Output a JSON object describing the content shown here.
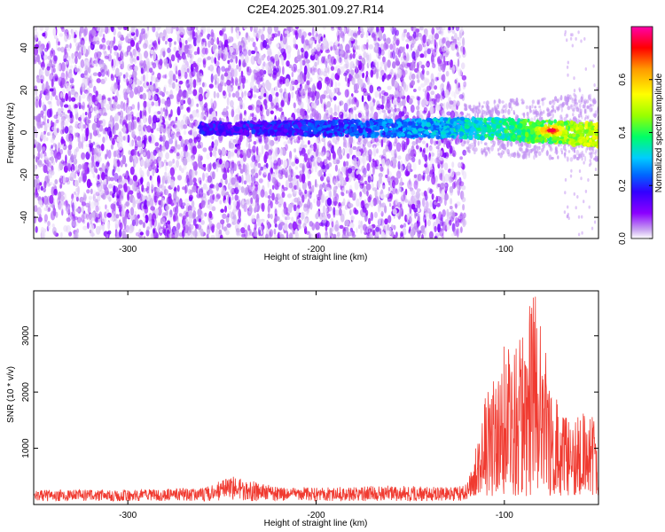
{
  "title": "C2E4.2025.301.09.27.R14",
  "chart_data": [
    {
      "type": "heatmap",
      "xlabel": "Height of straight line (km)",
      "ylabel": "Frequency (Hz)",
      "xlim": [
        -350,
        -50
      ],
      "ylim": [
        -50,
        50
      ],
      "x_ticks": [
        -300,
        -200,
        -100
      ],
      "y_ticks": [
        -40,
        -20,
        0,
        20,
        40
      ],
      "colorbar": {
        "label": "Normalized spectral amplitude",
        "range": [
          0.0,
          0.8
        ],
        "ticks": [
          0.0,
          0.2,
          0.4,
          0.6
        ],
        "colors": [
          "#ffffff",
          "#c9a6f0",
          "#8b00ff",
          "#3300ff",
          "#0066ff",
          "#00ccff",
          "#00ff66",
          "#99ff00",
          "#ffff00",
          "#ff9900",
          "#ff0000",
          "#ff00aa"
        ]
      },
      "features": {
        "noise_region_x": [
          -350,
          -121
        ],
        "signal_band_start_x": -262,
        "signal_band_center_hz": 2,
        "peak": {
          "x": -75,
          "y": 1,
          "value": 0.75
        }
      }
    },
    {
      "type": "line",
      "xlabel": "Height of straight line (km)",
      "ylabel": "SNR (10 * v/v)",
      "xlim": [
        -350,
        -50
      ],
      "ylim": [
        0,
        3800
      ],
      "x_ticks": [
        -300,
        -200,
        -100
      ],
      "y_ticks": [
        1000,
        2000,
        3000
      ],
      "series_color": "#f03a30",
      "series": [
        {
          "values_summary": "baseline ~150-250 from -350 to -120 km, bumps to ~500 near -245 km; sharp rise after -118 km to peaks ~3500-3800 near -85 km, decaying to ~1000-1500 at -50 km"
        }
      ],
      "x": [
        -350,
        -300,
        -260,
        -245,
        -220,
        -200,
        -160,
        -130,
        -121,
        -115,
        -110,
        -105,
        -100,
        -95,
        -90,
        -85,
        -80,
        -75,
        -70,
        -65,
        -60,
        -55,
        -50
      ],
      "values": [
        230,
        250,
        270,
        520,
        300,
        290,
        330,
        300,
        320,
        900,
        1850,
        2100,
        2700,
        2500,
        3000,
        3750,
        3100,
        2200,
        1600,
        1300,
        1450,
        1500,
        1250
      ]
    }
  ]
}
